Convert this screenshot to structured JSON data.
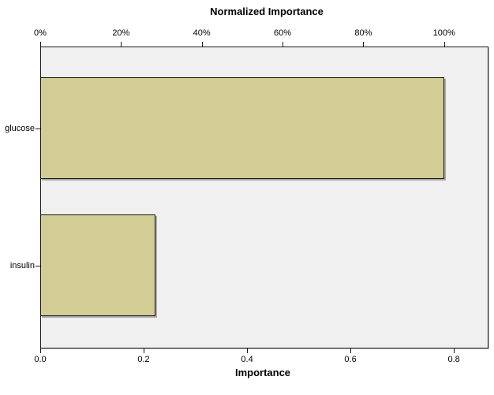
{
  "chart": {
    "title": "Normalized Importance",
    "xlabel": "Importance"
  },
  "chart_data": {
    "type": "bar",
    "orientation": "horizontal",
    "title": "Normalized Importance",
    "categories": [
      "glucose",
      "insulin"
    ],
    "series": [
      {
        "name": "Importance",
        "values": [
          0.78,
          0.22
        ]
      },
      {
        "name": "Normalized Importance (%)",
        "values": [
          100,
          28.5
        ]
      }
    ],
    "top_axis": {
      "label": "Normalized Importance",
      "tick_labels": [
        "0%",
        "20%",
        "40%",
        "60%",
        "80%",
        "100%"
      ],
      "tick_values": [
        0,
        20,
        40,
        60,
        80,
        100
      ],
      "range": [
        0,
        111
      ]
    },
    "bottom_axis": {
      "label": "Importance",
      "tick_labels": [
        "0.0",
        "0.2",
        "0.4",
        "0.6",
        "0.8"
      ],
      "tick_values": [
        0.0,
        0.2,
        0.4,
        0.6,
        0.8
      ],
      "range": [
        0,
        0.867
      ]
    },
    "grid": false,
    "legend": false,
    "colors": {
      "bar_fill": "#d2cd94",
      "bar_border": "#141414",
      "plot_background": "#f0f0f0",
      "page_background": "#ffffff",
      "axis_line": "#1a1a1a",
      "text": "#000000"
    }
  }
}
